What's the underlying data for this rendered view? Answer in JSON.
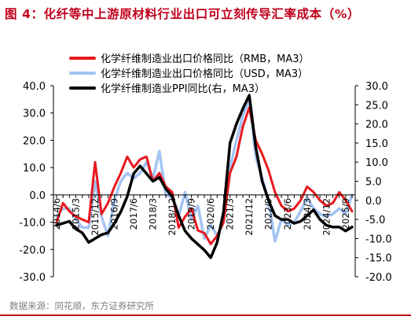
{
  "title": "图 4：化纤等中上游原材料行业出口可立刻传导汇率成本（%）",
  "source": "数据来源：同花顺，东方证券研究所",
  "colors": {
    "title": "#c0001b",
    "series_rmb": "#e8191e",
    "series_usd": "#a3c4f3",
    "series_ppi": "#000000",
    "axis": "#000000",
    "source_text": "#7f7f7f"
  },
  "chart_data": {
    "type": "line",
    "x": [
      "2014/6",
      "2014/9",
      "2014/12",
      "2015/3",
      "2015/6",
      "2015/9",
      "2015/12",
      "2016/3",
      "2016/6",
      "2016/9",
      "2016/12",
      "2017/3",
      "2017/6",
      "2017/9",
      "2017/12",
      "2018/3",
      "2018/6",
      "2018/9",
      "2018/12",
      "2019/3",
      "2019/6",
      "2019/9",
      "2019/12",
      "2020/3",
      "2020/6",
      "2020/9",
      "2020/12",
      "2021/3",
      "2021/6",
      "2021/9",
      "2021/12",
      "2022/3",
      "2022/6",
      "2022/9",
      "2022/12",
      "2023/3",
      "2023/6",
      "2023/9",
      "2023/12",
      "2024/3",
      "2024/6",
      "2024/9",
      "2024/12",
      "2025/3",
      "2025/6",
      "2025/9",
      "2025/12"
    ],
    "x_tick_labels": [
      "2014/6",
      "2015/3",
      "2015/12",
      "2016/9",
      "2017/6",
      "2018/3",
      "2018/12",
      "2019/9",
      "2020/6",
      "2021/3",
      "2021/12",
      "2022/9",
      "2023/6",
      "2024/3",
      "2024/12",
      "2025/9"
    ],
    "y_left": {
      "range": [
        -30,
        40
      ],
      "ticks": [
        "40.0",
        "30.0",
        "20.0",
        "10.0",
        "0.0",
        "-10.0",
        "-20.0",
        "-30.0"
      ]
    },
    "y_right": {
      "range": [
        -20,
        30
      ],
      "ticks": [
        "30.0",
        "25.0",
        "20.0",
        "15.0",
        "10.0",
        "5.0",
        "0.0",
        "-5.0",
        "-10.0",
        "-15.0",
        "-20.0"
      ]
    },
    "legend_position": "top-left",
    "grid": false,
    "series": [
      {
        "name": "化学纤维制造业出口价格同比（RMB，MA3）",
        "axis": "left",
        "color": "#e8191e",
        "values": [
          -10,
          -3,
          -6,
          -8,
          -9,
          -10,
          12,
          -7,
          -3,
          3,
          8,
          14,
          10,
          13,
          14,
          5,
          8,
          3,
          1,
          -12,
          -8,
          -5,
          -13,
          -14,
          -18,
          -15,
          -10,
          8,
          14,
          25,
          32,
          20,
          15,
          9,
          1,
          -4,
          -6,
          -5,
          -2,
          3,
          1,
          -2,
          -4,
          -3,
          1,
          -2,
          -6
        ]
      },
      {
        "name": "化学纤维制造业出口价格同比（USD，MA3）",
        "axis": "left",
        "color": "#a3c4f3",
        "values": [
          -8,
          -5,
          -5,
          -9,
          -12,
          -12,
          5,
          -8,
          -15,
          -2,
          5,
          8,
          6,
          8,
          12,
          6,
          16,
          0,
          -1,
          -8,
          1,
          -9,
          -4,
          -16,
          -11,
          -15,
          -10,
          10,
          20,
          29,
          35,
          14,
          6,
          -2,
          -17,
          -9,
          -11,
          -10,
          -6,
          -1,
          -5,
          -7,
          -8,
          -7,
          -5,
          -7,
          0
        ]
      },
      {
        "name": "化学纤维制造业PPI同比(右，MA3）",
        "axis": "right",
        "color": "#000000",
        "values": [
          -6.5,
          -6,
          -5.5,
          -7.5,
          -8.5,
          -11,
          -10,
          -9,
          -8.5,
          -6,
          -3,
          1,
          7,
          9,
          7,
          5,
          6,
          3,
          1,
          -4,
          -8,
          -10,
          -11.5,
          -13,
          -15,
          -11,
          -3,
          15,
          20,
          24,
          27.5,
          14,
          5,
          0,
          -4,
          -5,
          -5,
          -6,
          -5.5,
          -4,
          -2.5,
          -5,
          -6.5,
          -7,
          -7,
          -8,
          -7
        ]
      }
    ]
  }
}
